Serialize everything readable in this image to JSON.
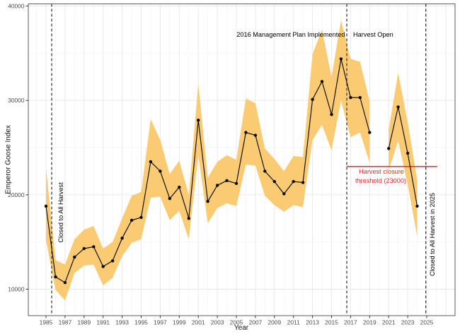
{
  "chart_data": {
    "type": "line",
    "title": "",
    "xlabel": "Year",
    "ylabel": "Emperor Goose Index",
    "x_ticks": [
      1985,
      1987,
      1989,
      1991,
      1993,
      1995,
      1997,
      1999,
      2001,
      2003,
      2005,
      2007,
      2009,
      2011,
      2013,
      2015,
      2017,
      2019,
      2021,
      2023,
      2025
    ],
    "y_ticks": [
      10000,
      20000,
      30000,
      40000
    ],
    "xlim": [
      1983.1,
      2028
    ],
    "ylim": [
      7200,
      40200
    ],
    "grid": "major and minor, light gray on white",
    "legend_position": "none",
    "band_color": "#fbcb73",
    "line_color": "#0a0a0a",
    "threshold_color": "#ee2b24",
    "series_name": "Emperor Goose Index estimate with confidence band",
    "segments": [
      {
        "years": [
          1985,
          1986,
          1987,
          1988,
          1989,
          1990,
          1991,
          1992,
          1993,
          1994,
          1995,
          1996,
          1997,
          1998,
          1999,
          2000,
          2001,
          2002,
          2003,
          2004,
          2005,
          2006,
          2007,
          2008,
          2009,
          2010,
          2011,
          2012,
          2013,
          2014,
          2015,
          2016,
          2017,
          2018,
          2019
        ],
        "values": [
          18800,
          11300,
          10700,
          13400,
          14300,
          14500,
          12400,
          13000,
          15400,
          17300,
          17600,
          23500,
          22500,
          19600,
          20800,
          17500,
          27900,
          19300,
          21000,
          21500,
          21200,
          26600,
          26300,
          22500,
          21400,
          20100,
          21400,
          21300,
          30100,
          32000,
          28500,
          34400,
          30300,
          30300,
          26600
        ],
        "lower": [
          15200,
          9900,
          8800,
          11700,
          12500,
          12600,
          10400,
          11200,
          13500,
          14900,
          15300,
          19700,
          19800,
          17300,
          18300,
          15300,
          24200,
          17000,
          18600,
          19100,
          18800,
          23200,
          23100,
          19900,
          18900,
          18200,
          18900,
          18700,
          25800,
          27400,
          24700,
          30000,
          26100,
          26600,
          23400
        ],
        "upper": [
          22900,
          13100,
          12600,
          15300,
          16300,
          16700,
          14300,
          15000,
          17500,
          19900,
          20300,
          28000,
          25800,
          22200,
          23600,
          20000,
          31800,
          21800,
          23500,
          24200,
          23700,
          30200,
          29700,
          24900,
          23800,
          22500,
          24100,
          24000,
          34900,
          37500,
          32500,
          38500,
          34400,
          34100,
          29900
        ]
      },
      {
        "years": [
          2021,
          2022,
          2023,
          2024
        ],
        "values": [
          24900,
          29300,
          24400,
          18800
        ],
        "lower": [
          22600,
          25700,
          21100,
          15600
        ],
        "upper": [
          26900,
          32900,
          27700,
          21600
        ]
      }
    ],
    "gap_years": [
      2020
    ],
    "vlines": [
      {
        "x": 1985.6,
        "label": "Closed to All Harvest"
      },
      {
        "x": 2016.6,
        "label_left": "2016 Management Plan Implemented",
        "label_right": "Harvest Open"
      },
      {
        "x": 2024.9,
        "label": "Closed to All Harvest in 2025"
      }
    ],
    "threshold": {
      "value": 23000,
      "x_start": 2016.6,
      "x_end": 2026.1,
      "label_line1": "Harvest closure",
      "label_line2": "threshold (23000)"
    }
  }
}
